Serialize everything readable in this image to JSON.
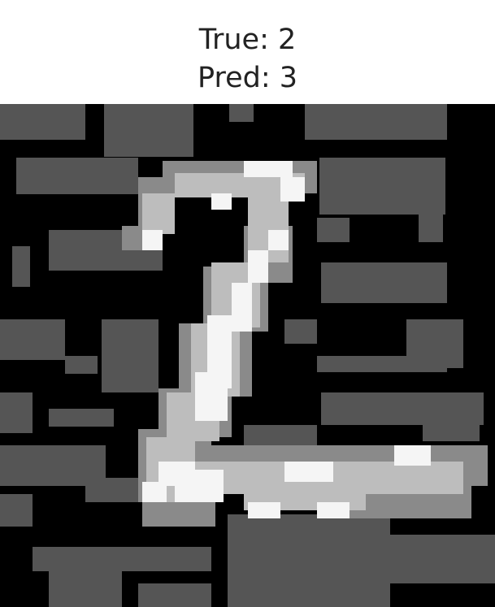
{
  "figure": {
    "true_text": "True: 2",
    "pred_text": "Pred: 3",
    "true_label": 2,
    "predicted_label": 3
  },
  "image": {
    "description_kind": "grayscale 28x28 handwritten digit with noisy background",
    "palette": {
      "black": "#000000",
      "dark_gray": "#555555",
      "mid_gray": "#8a8a8a",
      "light_gray": "#bdbdbd",
      "white": "#f5f5f5"
    }
  }
}
